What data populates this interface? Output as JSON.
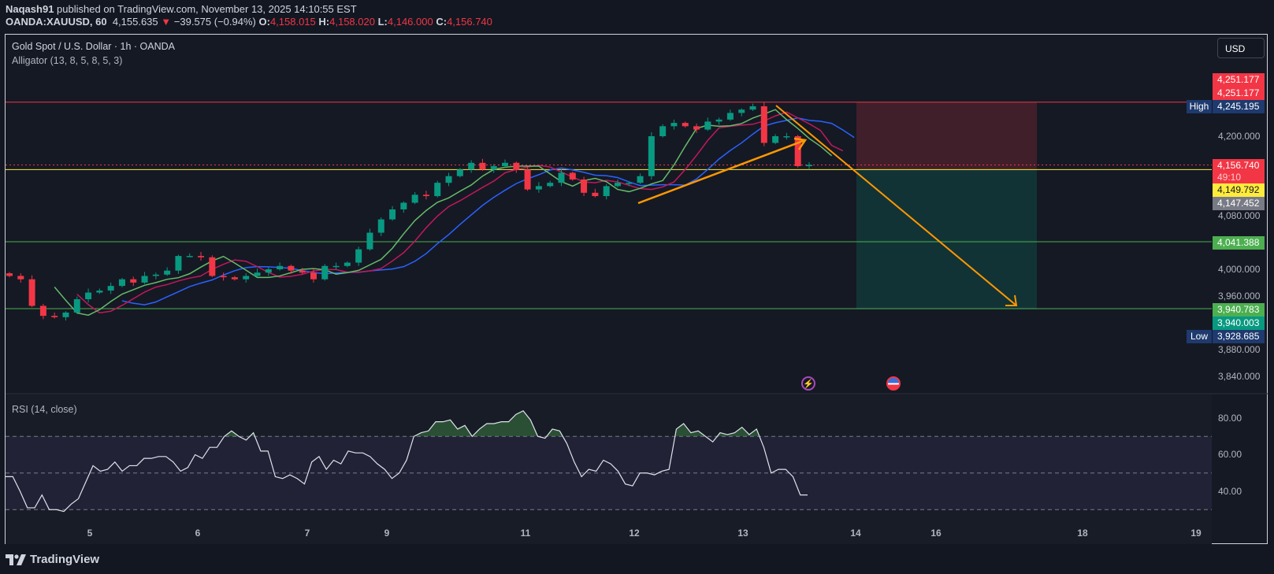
{
  "header": {
    "author": "Naqash91",
    "published_text": "published on TradingView.com, November 13, 2025 14:10:55 EST",
    "symbol": "OANDA:XAUUSD, 60",
    "last": "4,155.635",
    "change": "−39.575 (−0.94%)",
    "o_label": "O:",
    "o": "4,158.015",
    "h_label": "H:",
    "h": "4,158.020",
    "l_label": "L:",
    "l": "4,146.000",
    "c_label": "C:",
    "c": "4,156.740"
  },
  "legend": {
    "title": "Gold Spot / U.S. Dollar · 1h · OANDA",
    "indicator": "Alligator (13, 8, 5, 8, 5, 3)",
    "rsi": "RSI (14, close)"
  },
  "currency_button": "USD",
  "price_axis": {
    "ticks": [
      "4,200.000",
      "4,080.000",
      "4,000.000",
      "3,960.000",
      "3,880.000",
      "3,840.000"
    ],
    "labels": {
      "stop_top": "4,251.177",
      "stop": "4,251.177",
      "high_tag": "High",
      "high": "4,245.195",
      "last": "4,156.740",
      "countdown": "49:10",
      "yellow": "4,149.792",
      "gray": "4,147.452",
      "green_line": "4,041.388",
      "target_line": "3,940.783",
      "target": "3,940.003",
      "low_tag": "Low",
      "low": "3,928.685"
    }
  },
  "rsi_axis": {
    "ticks": [
      "80.00",
      "60.00",
      "40.00"
    ]
  },
  "time_axis": {
    "ticks": [
      "5",
      "6",
      "7",
      "9",
      "11",
      "12",
      "13",
      "14",
      "16",
      "18",
      "19"
    ]
  },
  "footer": {
    "brand": "TradingView"
  },
  "colors": {
    "up": "#089981",
    "down": "#f23645",
    "jaw": "#2962ff",
    "teeth": "#c2185b",
    "lips": "#66bb6a",
    "resistance": "#f23645",
    "support": "#4caf50",
    "yellow": "#ffeb3b",
    "drawing": "#ff9800"
  },
  "icons": {
    "event1": "lightning-icon",
    "event2": "us-flag-icon"
  },
  "chart_data": {
    "type": "candlestick",
    "title": "Gold Spot / U.S. Dollar · 1h · OANDA",
    "x_ticks": [
      "5",
      "6",
      "7",
      "9",
      "11",
      "12",
      "13",
      "14",
      "16",
      "18",
      "19"
    ],
    "ylim": [
      3820,
      4290
    ],
    "closes": [
      3990,
      3985,
      3945,
      3930,
      3928,
      3935,
      3955,
      3965,
      3968,
      3975,
      3985,
      3980,
      3990,
      3992,
      3998,
      4020,
      4020,
      4018,
      3990,
      3988,
      3985,
      3990,
      3995,
      4000,
      4005,
      3998,
      3995,
      3985,
      4005,
      4005,
      4010,
      4030,
      4055,
      4075,
      4090,
      4100,
      4112,
      4110,
      4130,
      4140,
      4150,
      4160,
      4150,
      4155,
      4160,
      4150,
      4120,
      4125,
      4130,
      4145,
      4135,
      4115,
      4110,
      4125,
      4130,
      4130,
      4140,
      4200,
      4215,
      4220,
      4215,
      4210,
      4222,
      4225,
      4235,
      4240,
      4245,
      4190,
      4200,
      4200,
      4155,
      4157
    ],
    "horizontal_levels": [
      4251.177,
      4156.74,
      4149.792,
      4041.388,
      3940.783
    ],
    "position": {
      "entry": 4149.792,
      "stop": 4251.177,
      "target": 3940.003
    },
    "rsi": {
      "levels": [
        70,
        50,
        30
      ],
      "ylim": [
        20,
        90
      ],
      "values": [
        48,
        48,
        40,
        31,
        31,
        38,
        30,
        30,
        29,
        33,
        36,
        45,
        54,
        51,
        52,
        56,
        51,
        54,
        54,
        58,
        58,
        59,
        59,
        56,
        51,
        53,
        60,
        58,
        64,
        64,
        70,
        73,
        70,
        68,
        72,
        62,
        62,
        48,
        47,
        49,
        47,
        44,
        56,
        59,
        52,
        57,
        55,
        62,
        61,
        61,
        59,
        55,
        52,
        47,
        50,
        57,
        70,
        72,
        73,
        78,
        78,
        79,
        74,
        76,
        70,
        74,
        77,
        77,
        78,
        78,
        82,
        84,
        79,
        70,
        69,
        74,
        73,
        66,
        56,
        48,
        52,
        51,
        57,
        55,
        51,
        44,
        43,
        50,
        50,
        49,
        51,
        52,
        74,
        77,
        72,
        73,
        70,
        67,
        72,
        71,
        72,
        75,
        71,
        74,
        64,
        50,
        52,
        52,
        48,
        38,
        38
      ]
    }
  }
}
